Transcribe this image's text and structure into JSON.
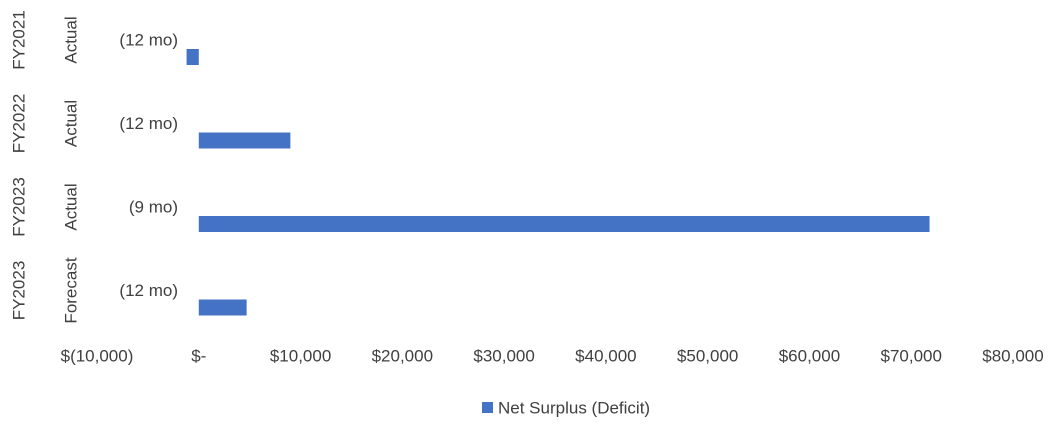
{
  "chart_data": {
    "type": "hbar",
    "categories": [
      [
        "FY2021",
        "Actual",
        "(12 mo)"
      ],
      [
        "FY2022",
        "Actual",
        "(12 mo)"
      ],
      [
        "FY2023",
        "Actual",
        "(9 mo)"
      ],
      [
        "FY2023",
        "Forecast",
        "(12 mo)"
      ]
    ],
    "series": [
      {
        "name": "Net Surplus (Deficit)",
        "color": "#4472c4",
        "values": [
          -1200,
          9000,
          71800,
          4700
        ]
      }
    ],
    "xlim": [
      -10000,
      80000
    ],
    "xticks": [
      {
        "value": -10000,
        "label": "$(10,000)"
      },
      {
        "value": 0,
        "label": "$-"
      },
      {
        "value": 10000,
        "label": "$10,000"
      },
      {
        "value": 20000,
        "label": "$20,000"
      },
      {
        "value": 30000,
        "label": "$30,000"
      },
      {
        "value": 40000,
        "label": "$40,000"
      },
      {
        "value": 50000,
        "label": "$50,000"
      },
      {
        "value": 60000,
        "label": "$60,000"
      },
      {
        "value": 70000,
        "label": "$70,000"
      },
      {
        "value": 80000,
        "label": "$80,000"
      }
    ],
    "legend": "bottom"
  }
}
